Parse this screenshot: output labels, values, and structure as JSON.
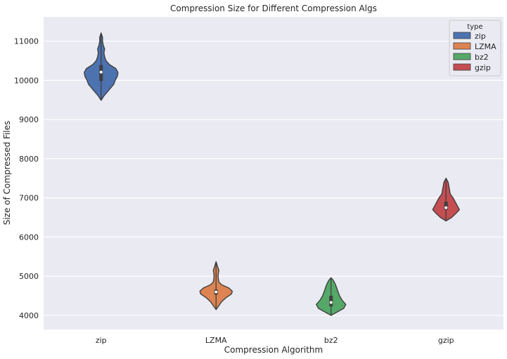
{
  "chart_data": {
    "type": "violin",
    "title": "Compression Size for Different Compression Algs",
    "xlabel": "Compression Algorithm",
    "ylabel": "Size of Compressed Files",
    "categories": [
      "zip",
      "LZMA",
      "bz2",
      "gzip"
    ],
    "ylim": [
      3640,
      11620
    ],
    "yticks": [
      4000,
      5000,
      6000,
      7000,
      8000,
      9000,
      10000,
      11000
    ],
    "grid": true,
    "legend": {
      "title": "type",
      "placement": "top-right",
      "entries": [
        "zip",
        "LZMA",
        "bz2",
        "gzip"
      ]
    },
    "series": [
      {
        "name": "zip",
        "color": "#4c72b0",
        "min": 9490,
        "q1": 9980,
        "median": 10210,
        "q3": 10390,
        "max": 11210,
        "density": [
          [
            9490,
            0
          ],
          [
            9600,
            4
          ],
          [
            9750,
            11
          ],
          [
            9900,
            18
          ],
          [
            10000,
            20
          ],
          [
            10100,
            23
          ],
          [
            10200,
            24
          ],
          [
            10300,
            21
          ],
          [
            10400,
            12
          ],
          [
            10500,
            7
          ],
          [
            10600,
            5
          ],
          [
            10700,
            4
          ],
          [
            10800,
            5
          ],
          [
            10900,
            3
          ],
          [
            11000,
            2
          ],
          [
            11100,
            2
          ],
          [
            11210,
            0
          ]
        ]
      },
      {
        "name": "LZMA",
        "color": "#dd8452",
        "min": 4150,
        "q1": 4530,
        "median": 4600,
        "q3": 4660,
        "max": 5370,
        "density": [
          [
            4150,
            0
          ],
          [
            4250,
            4
          ],
          [
            4350,
            8
          ],
          [
            4450,
            14
          ],
          [
            4550,
            22
          ],
          [
            4620,
            23
          ],
          [
            4700,
            18
          ],
          [
            4780,
            8
          ],
          [
            4850,
            4
          ],
          [
            4950,
            3
          ],
          [
            5050,
            3
          ],
          [
            5150,
            4
          ],
          [
            5250,
            2
          ],
          [
            5370,
            0
          ]
        ]
      },
      {
        "name": "bz2",
        "color": "#55a868",
        "min": 4000,
        "q1": 4230,
        "median": 4330,
        "q3": 4500,
        "max": 4960,
        "density": [
          [
            4000,
            0
          ],
          [
            4080,
            8
          ],
          [
            4180,
            18
          ],
          [
            4280,
            21
          ],
          [
            4380,
            16
          ],
          [
            4500,
            12
          ],
          [
            4600,
            10
          ],
          [
            4700,
            8
          ],
          [
            4800,
            6
          ],
          [
            4900,
            3
          ],
          [
            4960,
            0
          ]
        ]
      },
      {
        "name": "gzip",
        "color": "#c44e52",
        "min": 6410,
        "q1": 6700,
        "median": 6750,
        "q3": 6900,
        "max": 7500,
        "density": [
          [
            6410,
            0
          ],
          [
            6500,
            8
          ],
          [
            6600,
            14
          ],
          [
            6700,
            19
          ],
          [
            6800,
            16
          ],
          [
            6900,
            13
          ],
          [
            7000,
            10
          ],
          [
            7100,
            6
          ],
          [
            7200,
            5
          ],
          [
            7300,
            4
          ],
          [
            7400,
            3
          ],
          [
            7500,
            0
          ]
        ]
      }
    ]
  }
}
